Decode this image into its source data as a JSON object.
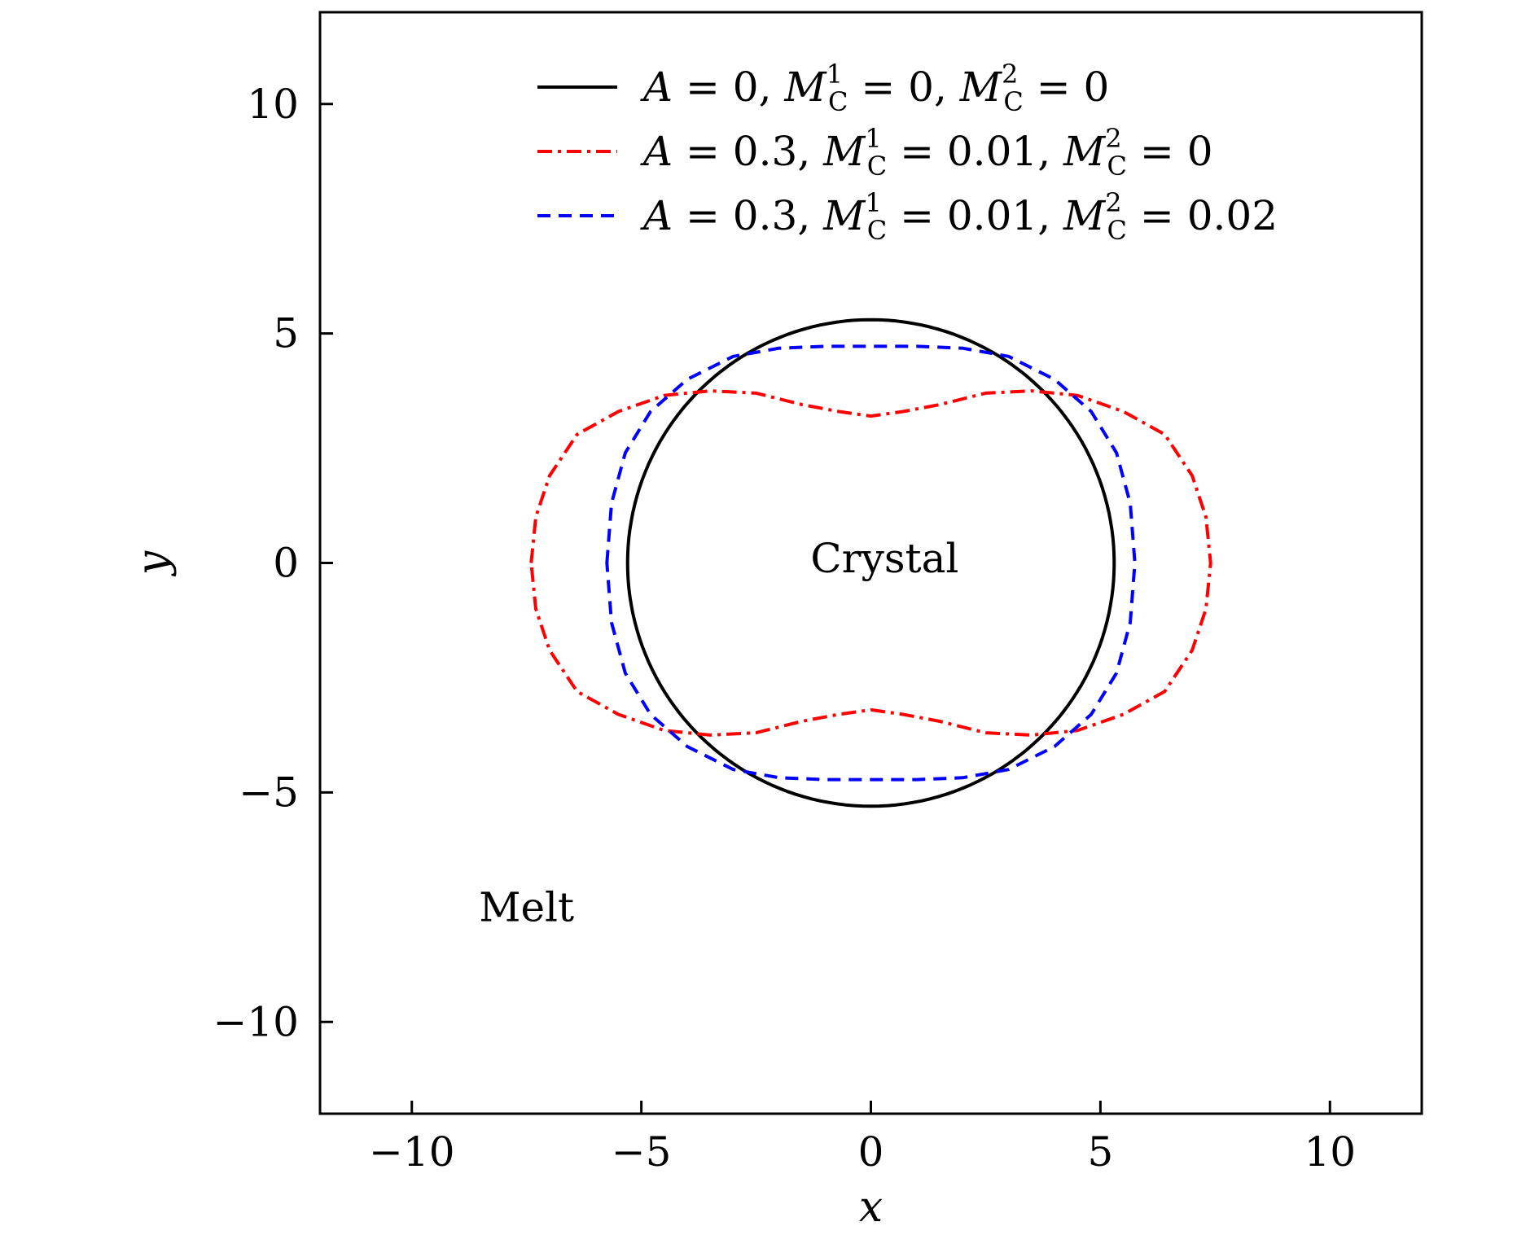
{
  "chart_data": {
    "type": "line",
    "xlabel": "x",
    "ylabel": "y",
    "xlim": [
      -12,
      12
    ],
    "ylim": [
      -12,
      12
    ],
    "xticks": [
      -10,
      -5,
      0,
      5,
      10
    ],
    "yticks": [
      -10,
      -5,
      0,
      5,
      10
    ],
    "xtick_labels": [
      "−10",
      "−5",
      "0",
      "5",
      "10"
    ],
    "ytick_labels": [
      "−10",
      "−5",
      "0",
      "5",
      "10"
    ],
    "grid": false,
    "legend_position": "top-center",
    "annotations": [
      {
        "text": "Crystal",
        "x": 0.3,
        "y": 0.1
      },
      {
        "text": "Melt",
        "x": -7.5,
        "y": -7.5
      }
    ],
    "series": [
      {
        "legend": {
          "A": "0",
          "MC1": "0",
          "MC2": "0"
        },
        "color": "#000000",
        "dash": "solid",
        "shape_model": {
          "kind": "circle",
          "radius": 5.3
        }
      },
      {
        "legend": {
          "A": "0.3",
          "MC1": "0.01",
          "MC2": "0"
        },
        "color": "#ff0000",
        "dash": "dashdot",
        "points": [
          [
            -7.4,
            0
          ],
          [
            -7.3,
            1.0
          ],
          [
            -7.0,
            1.9
          ],
          [
            -6.4,
            2.8
          ],
          [
            -5.5,
            3.3
          ],
          [
            -4.5,
            3.65
          ],
          [
            -3.5,
            3.75
          ],
          [
            -2.5,
            3.7
          ],
          [
            -1.5,
            3.45
          ],
          [
            -0.7,
            3.3
          ],
          [
            0,
            3.2
          ],
          [
            0.7,
            3.3
          ],
          [
            1.5,
            3.45
          ],
          [
            2.5,
            3.7
          ],
          [
            3.5,
            3.75
          ],
          [
            4.5,
            3.65
          ],
          [
            5.5,
            3.3
          ],
          [
            6.4,
            2.8
          ],
          [
            7.0,
            1.9
          ],
          [
            7.3,
            1.0
          ],
          [
            7.4,
            0
          ],
          [
            7.3,
            -1.0
          ],
          [
            7.0,
            -1.9
          ],
          [
            6.4,
            -2.8
          ],
          [
            5.5,
            -3.3
          ],
          [
            4.5,
            -3.65
          ],
          [
            3.5,
            -3.75
          ],
          [
            2.5,
            -3.7
          ],
          [
            1.5,
            -3.45
          ],
          [
            0.7,
            -3.3
          ],
          [
            0,
            -3.2
          ],
          [
            -0.7,
            -3.3
          ],
          [
            -1.5,
            -3.45
          ],
          [
            -2.5,
            -3.7
          ],
          [
            -3.5,
            -3.75
          ],
          [
            -4.5,
            -3.65
          ],
          [
            -5.5,
            -3.3
          ],
          [
            -6.4,
            -2.8
          ],
          [
            -7.0,
            -1.9
          ],
          [
            -7.3,
            -1.0
          ],
          [
            -7.4,
            0
          ]
        ]
      },
      {
        "legend": {
          "A": "0.3",
          "MC1": "0.01",
          "MC2": "0.02"
        },
        "color": "#0000ff",
        "dash": "dashed",
        "points": [
          [
            -5.75,
            0
          ],
          [
            -5.65,
            1.3
          ],
          [
            -5.35,
            2.4
          ],
          [
            -4.8,
            3.3
          ],
          [
            -4.0,
            4.0
          ],
          [
            -3.0,
            4.5
          ],
          [
            -2.0,
            4.68
          ],
          [
            -1.0,
            4.72
          ],
          [
            0,
            4.72
          ],
          [
            1.0,
            4.72
          ],
          [
            2.0,
            4.68
          ],
          [
            3.0,
            4.5
          ],
          [
            4.0,
            4.0
          ],
          [
            4.8,
            3.3
          ],
          [
            5.35,
            2.4
          ],
          [
            5.65,
            1.3
          ],
          [
            5.75,
            0
          ],
          [
            5.65,
            -1.3
          ],
          [
            5.35,
            -2.4
          ],
          [
            4.8,
            -3.3
          ],
          [
            4.0,
            -4.0
          ],
          [
            3.0,
            -4.5
          ],
          [
            2.0,
            -4.68
          ],
          [
            1.0,
            -4.72
          ],
          [
            0,
            -4.72
          ],
          [
            -1.0,
            -4.72
          ],
          [
            -2.0,
            -4.68
          ],
          [
            -3.0,
            -4.5
          ],
          [
            -4.0,
            -4.0
          ],
          [
            -4.8,
            -3.3
          ],
          [
            -5.35,
            -2.4
          ],
          [
            -5.65,
            -1.3
          ],
          [
            -5.75,
            0
          ]
        ]
      }
    ]
  }
}
